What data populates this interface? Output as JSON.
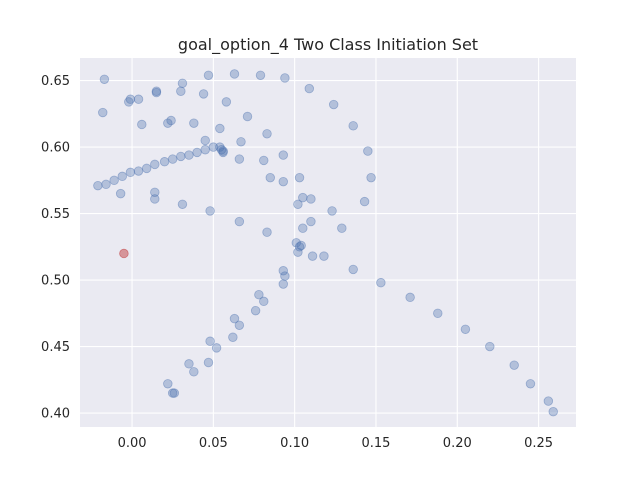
{
  "chart_data": {
    "type": "scatter",
    "title": "goal_option_4 Two Class Initiation Set",
    "xlabel": "",
    "ylabel": "",
    "xlim": [
      -0.032,
      0.273
    ],
    "ylim": [
      0.3895,
      0.667
    ],
    "grid": true,
    "x_ticks": [
      0.0,
      0.05,
      0.1,
      0.15,
      0.2,
      0.25
    ],
    "x_tick_labels": [
      "0.00",
      "0.05",
      "0.10",
      "0.15",
      "0.20",
      "0.25"
    ],
    "y_ticks": [
      0.4,
      0.45,
      0.5,
      0.55,
      0.6,
      0.65
    ],
    "y_tick_labels": [
      "0.40",
      "0.45",
      "0.50",
      "0.55",
      "0.60",
      "0.65"
    ],
    "colors": {
      "background": "#eaeaf2",
      "grid": "#ffffff",
      "class_0": "#4c72b0",
      "class_1": "#c44e52"
    },
    "series": [
      {
        "color": "#4c72b0",
        "alpha": 0.35,
        "points": [
          [
            -0.021,
            0.571
          ],
          [
            -0.016,
            0.572
          ],
          [
            -0.011,
            0.575
          ],
          [
            -0.006,
            0.578
          ],
          [
            -0.001,
            0.581
          ],
          [
            0.004,
            0.582
          ],
          [
            0.009,
            0.584
          ],
          [
            0.014,
            0.587
          ],
          [
            0.02,
            0.589
          ],
          [
            0.025,
            0.591
          ],
          [
            0.03,
            0.593
          ],
          [
            0.035,
            0.594
          ],
          [
            0.04,
            0.596
          ],
          [
            0.045,
            0.598
          ],
          [
            0.05,
            0.6
          ],
          [
            0.054,
            0.6
          ],
          [
            0.055,
            0.598
          ],
          [
            0.056,
            0.597
          ],
          [
            0.056,
            0.596
          ],
          [
            -0.018,
            0.626
          ],
          [
            -0.017,
            0.651
          ],
          [
            -0.002,
            0.634
          ],
          [
            -0.001,
            0.636
          ],
          [
            0.004,
            0.636
          ],
          [
            0.006,
            0.617
          ],
          [
            0.015,
            0.642
          ],
          [
            0.015,
            0.641
          ],
          [
            0.022,
            0.618
          ],
          [
            0.024,
            0.62
          ],
          [
            0.03,
            0.642
          ],
          [
            0.031,
            0.648
          ],
          [
            0.038,
            0.618
          ],
          [
            0.044,
            0.64
          ],
          [
            0.045,
            0.605
          ],
          [
            0.047,
            0.654
          ],
          [
            0.054,
            0.614
          ],
          [
            0.058,
            0.634
          ],
          [
            0.063,
            0.655
          ],
          [
            0.066,
            0.591
          ],
          [
            0.067,
            0.604
          ],
          [
            0.071,
            0.623
          ],
          [
            0.079,
            0.654
          ],
          [
            0.081,
            0.59
          ],
          [
            0.083,
            0.61
          ],
          [
            0.085,
            0.577
          ],
          [
            0.093,
            0.574
          ],
          [
            0.093,
            0.594
          ],
          [
            0.094,
            0.652
          ],
          [
            0.102,
            0.557
          ],
          [
            0.103,
            0.577
          ],
          [
            0.105,
            0.562
          ],
          [
            0.109,
            0.644
          ],
          [
            0.11,
            0.561
          ],
          [
            0.11,
            0.544
          ],
          [
            0.123,
            0.552
          ],
          [
            0.124,
            0.632
          ],
          [
            0.129,
            0.539
          ],
          [
            0.136,
            0.616
          ],
          [
            0.143,
            0.559
          ],
          [
            0.145,
            0.597
          ],
          [
            0.147,
            0.577
          ],
          [
            -0.007,
            0.565
          ],
          [
            0.014,
            0.566
          ],
          [
            0.014,
            0.561
          ],
          [
            0.031,
            0.557
          ],
          [
            0.048,
            0.552
          ],
          [
            0.066,
            0.544
          ],
          [
            0.083,
            0.536
          ],
          [
            0.101,
            0.528
          ],
          [
            0.103,
            0.525
          ],
          [
            0.104,
            0.526
          ],
          [
            0.102,
            0.521
          ],
          [
            0.105,
            0.539
          ],
          [
            0.111,
            0.518
          ],
          [
            0.118,
            0.518
          ],
          [
            0.136,
            0.508
          ],
          [
            0.153,
            0.498
          ],
          [
            0.171,
            0.487
          ],
          [
            0.188,
            0.475
          ],
          [
            0.205,
            0.463
          ],
          [
            0.22,
            0.45
          ],
          [
            0.235,
            0.436
          ],
          [
            0.245,
            0.422
          ],
          [
            0.256,
            0.409
          ],
          [
            0.259,
            0.401
          ],
          [
            0.093,
            0.507
          ],
          [
            0.094,
            0.503
          ],
          [
            0.093,
            0.497
          ],
          [
            0.078,
            0.489
          ],
          [
            0.081,
            0.484
          ],
          [
            0.076,
            0.477
          ],
          [
            0.063,
            0.471
          ],
          [
            0.066,
            0.466
          ],
          [
            0.062,
            0.457
          ],
          [
            0.048,
            0.454
          ],
          [
            0.052,
            0.449
          ],
          [
            0.047,
            0.438
          ],
          [
            0.035,
            0.437
          ],
          [
            0.038,
            0.431
          ],
          [
            0.022,
            0.422
          ],
          [
            0.025,
            0.415
          ],
          [
            0.026,
            0.415
          ]
        ]
      },
      {
        "color": "#c44e52",
        "alpha": 0.55,
        "points": [
          [
            -0.005,
            0.52
          ]
        ]
      }
    ]
  }
}
